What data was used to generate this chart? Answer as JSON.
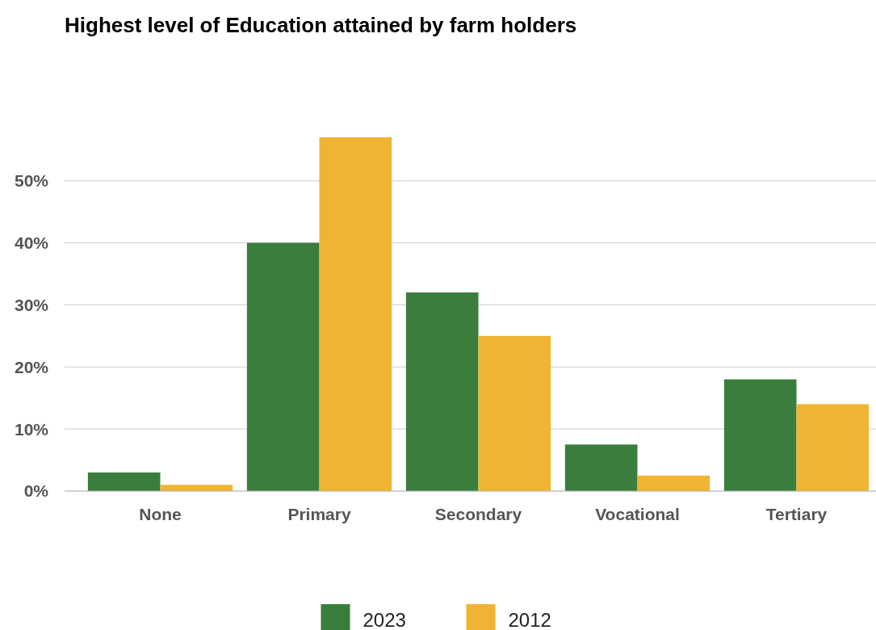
{
  "chart_data": {
    "type": "bar",
    "title": "Highest level of Education attained by farm holders",
    "categories": [
      "None",
      "Primary",
      "Secondary",
      "Vocational",
      "Tertiary"
    ],
    "series": [
      {
        "name": "2023",
        "color": "#3a7d3c",
        "values": [
          3,
          40,
          32,
          7.5,
          18
        ]
      },
      {
        "name": "2012",
        "color": "#f0b435",
        "values": [
          1,
          57,
          25,
          2.5,
          14
        ]
      }
    ],
    "yticks": [
      {
        "value": 0,
        "label": "0%"
      },
      {
        "value": 10,
        "label": "10%"
      },
      {
        "value": 20,
        "label": "20%"
      },
      {
        "value": 30,
        "label": "30%"
      },
      {
        "value": 40,
        "label": "40%"
      },
      {
        "value": 50,
        "label": "50%"
      }
    ],
    "ylim": [
      0,
      57
    ],
    "grid": "y",
    "legend": "bottom"
  }
}
